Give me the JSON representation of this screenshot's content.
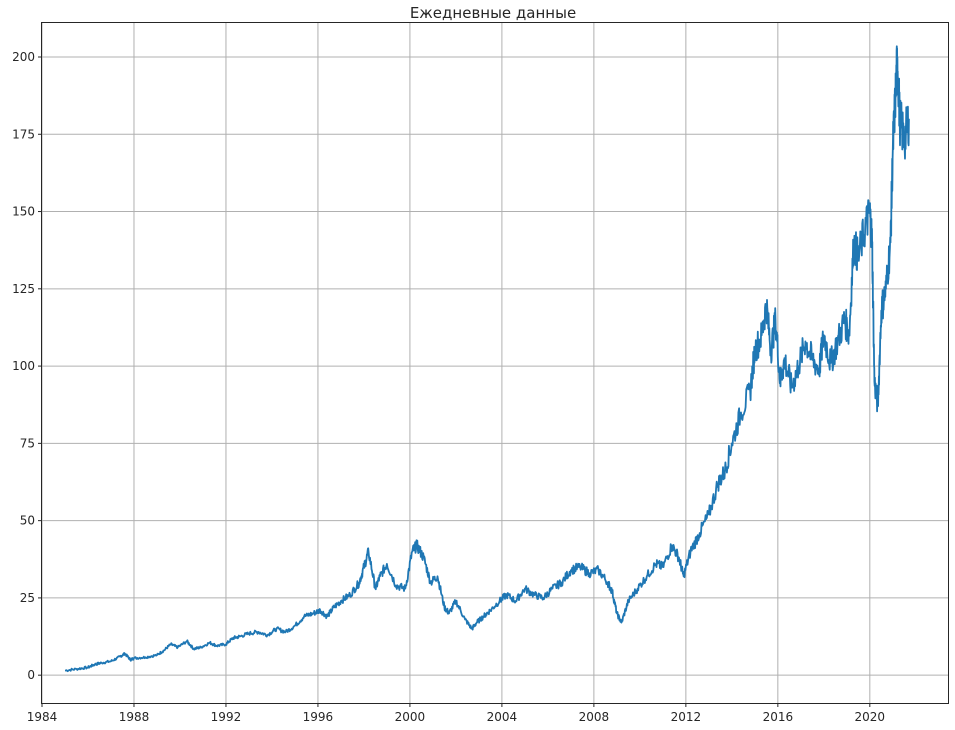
{
  "chart_data": {
    "type": "line",
    "title": "Ежедневные данные",
    "xlabel": "",
    "ylabel": "",
    "xlim": [
      1984.0,
      2023.4
    ],
    "ylim": [
      -9,
      211
    ],
    "grid": true,
    "x_ticks": [
      1984,
      1988,
      1992,
      1996,
      2000,
      2004,
      2008,
      2012,
      2016,
      2020
    ],
    "x_tick_labels": [
      "1984",
      "1988",
      "1992",
      "1996",
      "2000",
      "2004",
      "2008",
      "2012",
      "2016",
      "2020"
    ],
    "y_ticks": [
      0,
      25,
      50,
      75,
      100,
      125,
      150,
      175,
      200
    ],
    "y_tick_labels": [
      "0",
      "25",
      "50",
      "75",
      "100",
      "125",
      "150",
      "175",
      "200"
    ],
    "series": [
      {
        "color": "#1f77b4",
        "x": [
          1985.0,
          1985.5,
          1986.0,
          1986.3,
          1986.6,
          1987.0,
          1987.4,
          1987.6,
          1987.85,
          1988.0,
          1988.5,
          1989.0,
          1989.3,
          1989.6,
          1989.9,
          1990.3,
          1990.6,
          1990.9,
          1991.3,
          1991.6,
          1992.0,
          1992.3,
          1992.6,
          1993.0,
          1993.4,
          1993.8,
          1994.2,
          1994.6,
          1995.0,
          1995.4,
          1995.8,
          1996.1,
          1996.4,
          1996.7,
          1997.0,
          1997.4,
          1997.8,
          1998.0,
          1998.2,
          1998.5,
          1998.7,
          1999.0,
          1999.4,
          1999.8,
          2000.1,
          2000.3,
          2000.6,
          2000.9,
          2001.2,
          2001.5,
          2001.7,
          2002.0,
          2002.4,
          2002.7,
          2002.9,
          2003.2,
          2003.5,
          2003.9,
          2004.2,
          2004.6,
          2005.0,
          2005.4,
          2005.8,
          2006.2,
          2006.6,
          2007.0,
          2007.4,
          2007.8,
          2008.2,
          2008.6,
          2008.8,
          2009.0,
          2009.2,
          2009.5,
          2009.9,
          2010.3,
          2010.7,
          2011.0,
          2011.4,
          2011.7,
          2011.9,
          2012.2,
          2012.6,
          2013.0,
          2013.4,
          2013.7,
          2014.0,
          2014.4,
          2014.8,
          2015.0,
          2015.3,
          2015.5,
          2015.7,
          2015.9,
          2016.1,
          2016.3,
          2016.6,
          2016.9,
          2017.2,
          2017.5,
          2017.8,
          2018.0,
          2018.3,
          2018.6,
          2018.9,
          2019.1,
          2019.3,
          2019.5,
          2019.8,
          2020.0,
          2020.1,
          2020.2,
          2020.35,
          2020.5,
          2020.7,
          2020.9,
          2021.0,
          2021.1,
          2021.2,
          2021.3,
          2021.5,
          2021.7
        ],
        "y": [
          1.5,
          2.0,
          2.5,
          3.5,
          4.0,
          4.5,
          6.0,
          7.0,
          5.0,
          5.5,
          5.8,
          6.5,
          8.0,
          10.0,
          9.0,
          11.0,
          8.5,
          9.0,
          10.5,
          9.5,
          10.0,
          12.0,
          12.5,
          13.5,
          14.0,
          13.0,
          15.0,
          14.0,
          16.0,
          19.0,
          20.0,
          21.0,
          19.0,
          22.0,
          24.0,
          26.0,
          30.0,
          35.0,
          40.0,
          28.0,
          32.0,
          36.0,
          29.0,
          28.0,
          40.0,
          42.0,
          38.0,
          30.0,
          32.0,
          22.0,
          20.0,
          24.0,
          18.0,
          15.0,
          17.0,
          19.0,
          21.0,
          24.0,
          26.0,
          24.0,
          28.0,
          26.0,
          25.0,
          28.0,
          30.0,
          34.0,
          35.0,
          33.0,
          34.0,
          30.0,
          27.0,
          20.0,
          17.0,
          24.0,
          28.0,
          32.0,
          36.0,
          35.0,
          42.0,
          38.0,
          32.0,
          40.0,
          46.0,
          52.0,
          62.0,
          66.0,
          75.0,
          85.0,
          92.0,
          105.0,
          110.0,
          120.0,
          105.0,
          115.0,
          95.0,
          102.0,
          93.0,
          100.0,
          108.0,
          102.0,
          99.0,
          110.0,
          101.0,
          108.0,
          115.0,
          110.0,
          140.0,
          135.0,
          145.0,
          150.0,
          140.0,
          95.0,
          87.0,
          118.0,
          125.0,
          140.0,
          170.0,
          185.0,
          200.0,
          180.0,
          173.0,
          180.0
        ]
      }
    ]
  }
}
